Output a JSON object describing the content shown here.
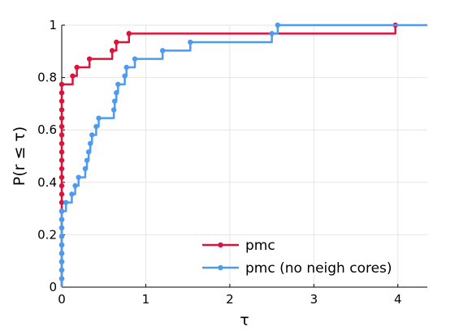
{
  "chart_data": {
    "type": "line",
    "title": "",
    "xlabel": "τ",
    "ylabel": "P(r ≤ τ)",
    "xlim": [
      0,
      4.35
    ],
    "ylim": [
      0,
      1.0
    ],
    "x_ticks": [
      0,
      1,
      2,
      3,
      4
    ],
    "x_tick_labels": [
      "0",
      "1",
      "2",
      "3",
      "4"
    ],
    "y_ticks": [
      0,
      0.2,
      0.4,
      0.6,
      0.8,
      1.0
    ],
    "y_tick_labels": [
      "0",
      "0.2",
      "0.4",
      "0.6",
      "0.8",
      "1"
    ],
    "grid": true,
    "legend_position": "bottom-right",
    "step": "post",
    "series": [
      {
        "name": "pmc",
        "color": "#dc143c",
        "points": [
          [
            0,
            0.032
          ],
          [
            0,
            0.065
          ],
          [
            0,
            0.097
          ],
          [
            0,
            0.129
          ],
          [
            0,
            0.161
          ],
          [
            0,
            0.194
          ],
          [
            0,
            0.226
          ],
          [
            0,
            0.258
          ],
          [
            0,
            0.29
          ],
          [
            0,
            0.323
          ],
          [
            0,
            0.355
          ],
          [
            0,
            0.387
          ],
          [
            0,
            0.419
          ],
          [
            0,
            0.452
          ],
          [
            0,
            0.484
          ],
          [
            0,
            0.516
          ],
          [
            0,
            0.548
          ],
          [
            0,
            0.581
          ],
          [
            0,
            0.613
          ],
          [
            0,
            0.645
          ],
          [
            0,
            0.677
          ],
          [
            0,
            0.71
          ],
          [
            0,
            0.742
          ],
          [
            0,
            0.774
          ],
          [
            0.13,
            0.806
          ],
          [
            0.18,
            0.839
          ],
          [
            0.33,
            0.871
          ],
          [
            0.6,
            0.903
          ],
          [
            0.65,
            0.935
          ],
          [
            0.8,
            0.968
          ],
          [
            3.97,
            1.0
          ]
        ],
        "end_x": 3.97
      },
      {
        "name": "pmc (no neigh cores)",
        "color": "#4c9bf0",
        "points": [
          [
            0,
            0.032
          ],
          [
            0,
            0.065
          ],
          [
            0,
            0.097
          ],
          [
            0,
            0.129
          ],
          [
            0,
            0.161
          ],
          [
            0,
            0.194
          ],
          [
            0,
            0.226
          ],
          [
            0,
            0.258
          ],
          [
            0,
            0.29
          ],
          [
            0.05,
            0.323
          ],
          [
            0.12,
            0.355
          ],
          [
            0.16,
            0.387
          ],
          [
            0.2,
            0.419
          ],
          [
            0.28,
            0.452
          ],
          [
            0.3,
            0.484
          ],
          [
            0.32,
            0.516
          ],
          [
            0.34,
            0.548
          ],
          [
            0.36,
            0.581
          ],
          [
            0.41,
            0.613
          ],
          [
            0.44,
            0.645
          ],
          [
            0.62,
            0.677
          ],
          [
            0.63,
            0.71
          ],
          [
            0.65,
            0.742
          ],
          [
            0.67,
            0.774
          ],
          [
            0.75,
            0.806
          ],
          [
            0.77,
            0.839
          ],
          [
            0.87,
            0.871
          ],
          [
            1.2,
            0.903
          ],
          [
            1.53,
            0.935
          ],
          [
            2.5,
            0.968
          ],
          [
            2.57,
            1.0
          ]
        ],
        "end_x": 4.35
      }
    ]
  }
}
